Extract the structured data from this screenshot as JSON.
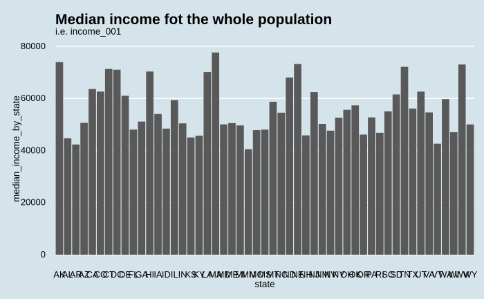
{
  "chart_data": {
    "type": "bar",
    "title": "Median income fot the whole population",
    "subtitle": "i.e. income_001",
    "xlabel": "state",
    "ylabel": "median_income_by_state",
    "ylim": [
      0,
      85000
    ],
    "yticks": [
      0,
      20000,
      40000,
      60000,
      80000
    ],
    "ytick_labels": [
      "0",
      "20000",
      "40000",
      "60000",
      "80000"
    ],
    "grid": "horizontal",
    "categories": [
      "AK",
      "AL",
      "AR",
      "AZ",
      "CA",
      "CO",
      "CT",
      "DC",
      "DE",
      "FL",
      "GA",
      "HI",
      "IA",
      "ID",
      "IL",
      "IN",
      "KS",
      "KY",
      "LA",
      "MA",
      "MD",
      "ME",
      "MI",
      "MN",
      "MO",
      "MS",
      "MT",
      "NC",
      "ND",
      "NE",
      "NH",
      "NJ",
      "NM",
      "NV",
      "NY",
      "OH",
      "OK",
      "OR",
      "PA",
      "RI",
      "SC",
      "SD",
      "TN",
      "TX",
      "UT",
      "VA",
      "VT",
      "WA",
      "WI",
      "WV",
      "WY"
    ],
    "values": [
      73900,
      44700,
      42300,
      50600,
      63600,
      62600,
      71300,
      71000,
      61000,
      48000,
      51100,
      70300,
      54000,
      48400,
      59300,
      50400,
      45000,
      45700,
      70100,
      77600,
      50000,
      50500,
      49600,
      40500,
      47800,
      48000,
      58700,
      54500,
      68000,
      73200,
      45800,
      62400,
      50200,
      47600,
      52600,
      55600,
      57300,
      46100,
      52700,
      46800,
      55000,
      61500,
      72100,
      56100,
      62600,
      54600,
      42600,
      59700,
      47000,
      73000,
      50000
    ],
    "colors": {
      "background": "#d5e4eb",
      "bar": "#595959",
      "grid": "#ffffff"
    }
  }
}
